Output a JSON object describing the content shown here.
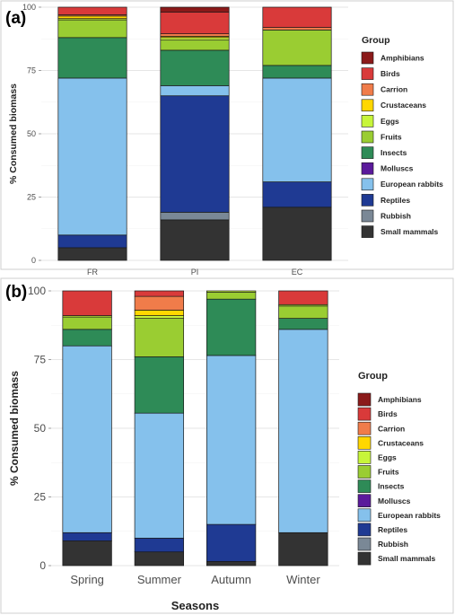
{
  "groups": [
    "Amphibians",
    "Birds",
    "Carrion",
    "Crustaceans",
    "Eggs",
    "Fruits",
    "Insects",
    "Molluscs",
    "European rabbits",
    "Reptiles",
    "Rubbish",
    "Small mammals"
  ],
  "colors": {
    "Amphibians": "#8b1a1a",
    "Birds": "#d93a3a",
    "Carrion": "#f07c4a",
    "Crustaceans": "#ffd700",
    "Eggs": "#c7f53a",
    "Fruits": "#9acd32",
    "Insects": "#2e8b57",
    "Molluscs": "#5b1a9b",
    "European rabbits": "#85c1ec",
    "Reptiles": "#1f3a93",
    "Rubbish": "#7a8896",
    "Small mammals": "#333333"
  },
  "chart_data": [
    {
      "type": "bar",
      "panel_label": "(a)",
      "stacked": true,
      "categories": [
        "FR",
        "PI",
        "EC"
      ],
      "xlabel": "",
      "ylabel": "% Consumed biomass",
      "ylim": [
        0,
        100
      ],
      "yticks": [
        "0",
        "25",
        "50",
        "75",
        "100"
      ],
      "legend_title": "Group",
      "legend_position": "right",
      "grid": true,
      "series": [
        {
          "name": "Small mammals",
          "values": [
            5,
            16,
            21
          ]
        },
        {
          "name": "Rubbish",
          "values": [
            0,
            3,
            0
          ]
        },
        {
          "name": "Reptiles",
          "values": [
            5,
            46,
            10
          ]
        },
        {
          "name": "European rabbits",
          "values": [
            62,
            4,
            41
          ]
        },
        {
          "name": "Molluscs",
          "values": [
            0,
            0,
            0
          ]
        },
        {
          "name": "Insects",
          "values": [
            16,
            14,
            5
          ]
        },
        {
          "name": "Fruits",
          "values": [
            7,
            4,
            14
          ]
        },
        {
          "name": "Eggs",
          "values": [
            0.5,
            1,
            0
          ]
        },
        {
          "name": "Crustaceans",
          "values": [
            1,
            0.5,
            0
          ]
        },
        {
          "name": "Carrion",
          "values": [
            0.5,
            1,
            1
          ]
        },
        {
          "name": "Birds",
          "values": [
            3,
            8.5,
            8
          ]
        },
        {
          "name": "Amphibians",
          "values": [
            0,
            2,
            0
          ]
        }
      ]
    },
    {
      "type": "bar",
      "panel_label": "(b)",
      "stacked": true,
      "categories": [
        "Spring",
        "Summer",
        "Autumn",
        "Winter"
      ],
      "xlabel": "Seasons",
      "ylabel": "% Consumed biomass",
      "ylim": [
        0,
        100
      ],
      "yticks": [
        "0",
        "25",
        "50",
        "75",
        "100"
      ],
      "legend_title": "Group",
      "legend_position": "right",
      "grid": true,
      "series": [
        {
          "name": "Small mammals",
          "values": [
            9,
            5,
            1.5,
            12
          ]
        },
        {
          "name": "Rubbish",
          "values": [
            0,
            0,
            0,
            0
          ]
        },
        {
          "name": "Reptiles",
          "values": [
            3,
            5,
            13.5,
            0
          ]
        },
        {
          "name": "European rabbits",
          "values": [
            68,
            45.5,
            61.5,
            74
          ]
        },
        {
          "name": "Molluscs",
          "values": [
            0,
            0,
            0,
            0
          ]
        },
        {
          "name": "Insects",
          "values": [
            6,
            20.5,
            20.5,
            4
          ]
        },
        {
          "name": "Fruits",
          "values": [
            4.5,
            14,
            2.5,
            4.5
          ]
        },
        {
          "name": "Eggs",
          "values": [
            0.5,
            1,
            0.5,
            0.5
          ]
        },
        {
          "name": "Crustaceans",
          "values": [
            0,
            2,
            0,
            0
          ]
        },
        {
          "name": "Carrion",
          "values": [
            0,
            5,
            0,
            0
          ]
        },
        {
          "name": "Birds",
          "values": [
            9,
            2,
            0,
            5
          ]
        },
        {
          "name": "Amphibians",
          "values": [
            0,
            0,
            0,
            0
          ]
        }
      ]
    }
  ]
}
